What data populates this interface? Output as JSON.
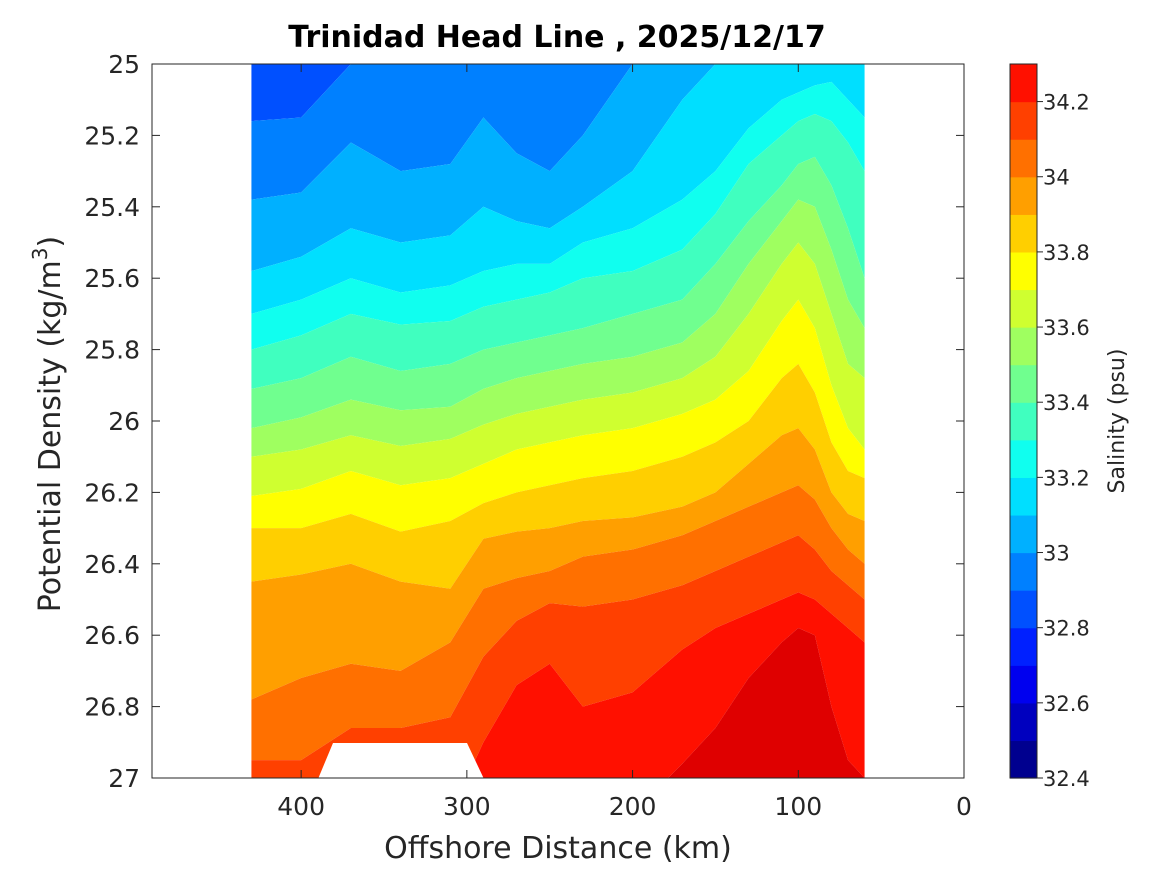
{
  "chart_data": {
    "type": "heatmap",
    "subtype": "filled-contour",
    "title": "Trinidad Head Line , 2025/12/17",
    "xlabel": "Offshore Distance (km)",
    "ylabel_text": "Potential Density (kg/m",
    "ylabel_sup": "3",
    "ylabel_close": ")",
    "xlim": [
      490,
      0
    ],
    "x_reversed": true,
    "ylim": [
      27,
      25
    ],
    "y_reversed": true,
    "xticks": [
      "400",
      "300",
      "200",
      "100",
      "0"
    ],
    "xtick_values": [
      400,
      300,
      200,
      100,
      0
    ],
    "yticks": [
      "25",
      "25.2",
      "25.4",
      "25.6",
      "25.8",
      "26",
      "26.2",
      "26.4",
      "26.6",
      "26.8",
      "27"
    ],
    "ytick_values": [
      25,
      25.2,
      25.4,
      25.6,
      25.8,
      26,
      26.2,
      26.4,
      26.6,
      26.8,
      27
    ],
    "data_extent_x": [
      430,
      60
    ],
    "contour_levels": [
      32.4,
      32.5,
      32.6,
      32.7,
      32.8,
      32.9,
      33.0,
      33.1,
      33.2,
      33.3,
      33.4,
      33.5,
      33.6,
      33.7,
      33.8,
      33.9,
      34.0,
      34.1,
      34.2,
      34.3
    ],
    "colorbar": {
      "label": "Salinity (psu)",
      "range": [
        32.4,
        34.3
      ],
      "ticks": [
        "32.4",
        "32.6",
        "32.8",
        "33",
        "33.2",
        "33.4",
        "33.6",
        "33.8",
        "34",
        "34.2"
      ],
      "tick_values": [
        32.4,
        32.6,
        32.8,
        33.0,
        33.2,
        33.4,
        33.6,
        33.8,
        34.0,
        34.2
      ],
      "colormap": "jet",
      "colors": [
        "#00008f",
        "#0000bf",
        "#0000ef",
        "#0020ff",
        "#0050ff",
        "#0080ff",
        "#00b0ff",
        "#00dfff",
        "#10ffef",
        "#40ffbf",
        "#70ff8f",
        "#9fff60",
        "#cfff30",
        "#ffff00",
        "#ffcf00",
        "#ff9f00",
        "#ff7000",
        "#ff4000",
        "#ff1000",
        "#df0000",
        "#af0000",
        "#800000"
      ]
    },
    "isohaline_density": {
      "x": [
        430,
        400,
        370,
        340,
        310,
        290,
        270,
        250,
        230,
        200,
        170,
        150,
        130,
        110,
        100,
        90,
        80,
        70,
        60
      ],
      "lines": [
        {
          "s": 32.9,
          "sigma": [
            25.16,
            25.15,
            25.0,
            25.0,
            25.0,
            25.0,
            25.0,
            25.0,
            25.0,
            25.0,
            25.0,
            25.0,
            25.0,
            25.0,
            25.0,
            25.0,
            25.0,
            25.0,
            25.0
          ]
        },
        {
          "s": 33.0,
          "sigma": [
            25.38,
            25.36,
            25.22,
            25.3,
            25.28,
            25.15,
            25.25,
            25.3,
            25.2,
            25.0,
            25.0,
            25.0,
            25.0,
            25.0,
            25.0,
            25.0,
            25.0,
            25.0,
            25.0
          ]
        },
        {
          "s": 33.1,
          "sigma": [
            25.58,
            25.54,
            25.46,
            25.5,
            25.48,
            25.4,
            25.44,
            25.46,
            25.4,
            25.3,
            25.1,
            25.0,
            25.0,
            25.0,
            25.0,
            25.0,
            25.0,
            25.0,
            25.0
          ]
        },
        {
          "s": 33.2,
          "sigma": [
            25.7,
            25.66,
            25.6,
            25.64,
            25.62,
            25.58,
            25.56,
            25.56,
            25.5,
            25.46,
            25.38,
            25.3,
            25.18,
            25.1,
            25.08,
            25.06,
            25.05,
            25.1,
            25.15
          ]
        },
        {
          "s": 33.3,
          "sigma": [
            25.8,
            25.76,
            25.7,
            25.73,
            25.72,
            25.68,
            25.66,
            25.64,
            25.6,
            25.58,
            25.52,
            25.42,
            25.28,
            25.2,
            25.16,
            25.14,
            25.16,
            25.22,
            25.3
          ]
        },
        {
          "s": 33.4,
          "sigma": [
            25.91,
            25.88,
            25.82,
            25.86,
            25.84,
            25.8,
            25.78,
            25.76,
            25.74,
            25.7,
            25.66,
            25.56,
            25.44,
            25.34,
            25.28,
            25.26,
            25.34,
            25.46,
            25.6
          ]
        },
        {
          "s": 33.5,
          "sigma": [
            26.02,
            25.99,
            25.94,
            25.97,
            25.96,
            25.91,
            25.88,
            25.86,
            25.84,
            25.82,
            25.78,
            25.7,
            25.56,
            25.44,
            25.38,
            25.4,
            25.52,
            25.66,
            25.74
          ]
        },
        {
          "s": 33.6,
          "sigma": [
            26.1,
            26.08,
            26.04,
            26.07,
            26.05,
            26.01,
            25.98,
            25.96,
            25.94,
            25.92,
            25.88,
            25.82,
            25.7,
            25.56,
            25.5,
            25.56,
            25.7,
            25.84,
            25.88
          ]
        },
        {
          "s": 33.7,
          "sigma": [
            26.21,
            26.19,
            26.14,
            26.18,
            26.16,
            26.12,
            26.08,
            26.06,
            26.04,
            26.02,
            25.98,
            25.94,
            25.86,
            25.72,
            25.66,
            25.74,
            25.9,
            26.02,
            26.08
          ]
        },
        {
          "s": 33.8,
          "sigma": [
            26.3,
            26.3,
            26.26,
            26.31,
            26.28,
            26.23,
            26.2,
            26.18,
            26.16,
            26.14,
            26.1,
            26.06,
            26.0,
            25.88,
            25.84,
            25.92,
            26.06,
            26.14,
            26.16
          ]
        },
        {
          "s": 33.9,
          "sigma": [
            26.45,
            26.43,
            26.4,
            26.45,
            26.47,
            26.33,
            26.31,
            26.3,
            26.28,
            26.27,
            26.24,
            26.2,
            26.12,
            26.04,
            26.02,
            26.08,
            26.2,
            26.26,
            26.28
          ]
        },
        {
          "s": 34.0,
          "sigma": [
            26.78,
            26.72,
            26.68,
            26.7,
            26.62,
            26.47,
            26.44,
            26.42,
            26.38,
            26.36,
            26.32,
            26.28,
            26.24,
            26.2,
            26.18,
            26.22,
            26.3,
            26.36,
            26.4
          ]
        },
        {
          "s": 34.1,
          "sigma": [
            26.95,
            26.95,
            26.86,
            26.86,
            26.83,
            26.66,
            26.56,
            26.51,
            26.52,
            26.5,
            26.46,
            26.42,
            26.38,
            26.34,
            26.32,
            26.36,
            26.42,
            26.46,
            26.5
          ]
        },
        {
          "s": 34.2,
          "sigma": [
            27.1,
            27.1,
            27.1,
            27.1,
            27.1,
            26.9,
            26.74,
            26.68,
            26.8,
            26.76,
            26.64,
            26.58,
            26.54,
            26.5,
            26.48,
            26.5,
            26.54,
            26.58,
            26.62
          ]
        },
        {
          "s": 34.3,
          "sigma": [
            27.1,
            27.1,
            27.1,
            27.1,
            27.1,
            27.1,
            27.1,
            27.1,
            27.1,
            27.1,
            26.96,
            26.86,
            26.72,
            26.62,
            26.58,
            26.6,
            26.8,
            26.95,
            27.0
          ]
        }
      ]
    }
  }
}
